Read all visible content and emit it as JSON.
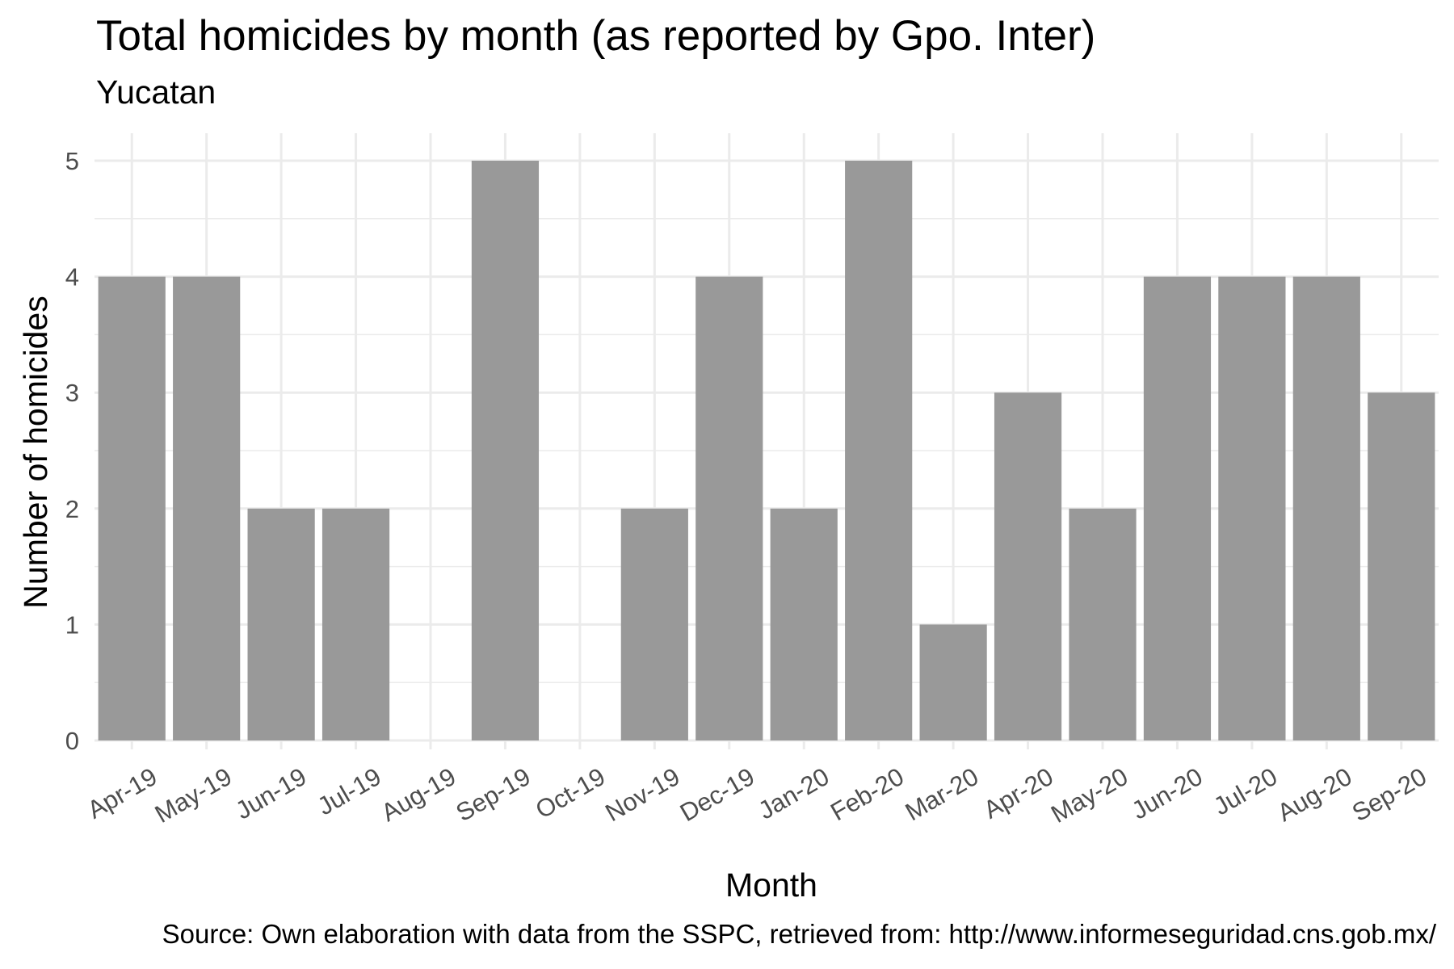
{
  "chart_data": {
    "type": "bar",
    "title": "Total homicides by month (as reported by Gpo. Inter)",
    "subtitle": "Yucatan",
    "xlabel": "Month",
    "ylabel": "Number of homicides",
    "caption": "Source: Own elaboration with data from the SSPC, retrieved from: http://www.informeseguridad.cns.gob.mx/",
    "categories": [
      "Apr-19",
      "May-19",
      "Jun-19",
      "Jul-19",
      "Aug-19",
      "Sep-19",
      "Oct-19",
      "Nov-19",
      "Dec-19",
      "Jan-20",
      "Feb-20",
      "Mar-20",
      "Apr-20",
      "May-20",
      "Jun-20",
      "Jul-20",
      "Aug-20",
      "Sep-20"
    ],
    "values": [
      4,
      4,
      2,
      2,
      0,
      5,
      0,
      2,
      4,
      2,
      5,
      1,
      3,
      2,
      4,
      4,
      4,
      3
    ],
    "ylim": [
      0,
      5
    ],
    "yticks": [
      0,
      1,
      2,
      3,
      4,
      5
    ],
    "grid": true,
    "bar_color": "#999999",
    "grid_color": "#ebebeb"
  }
}
